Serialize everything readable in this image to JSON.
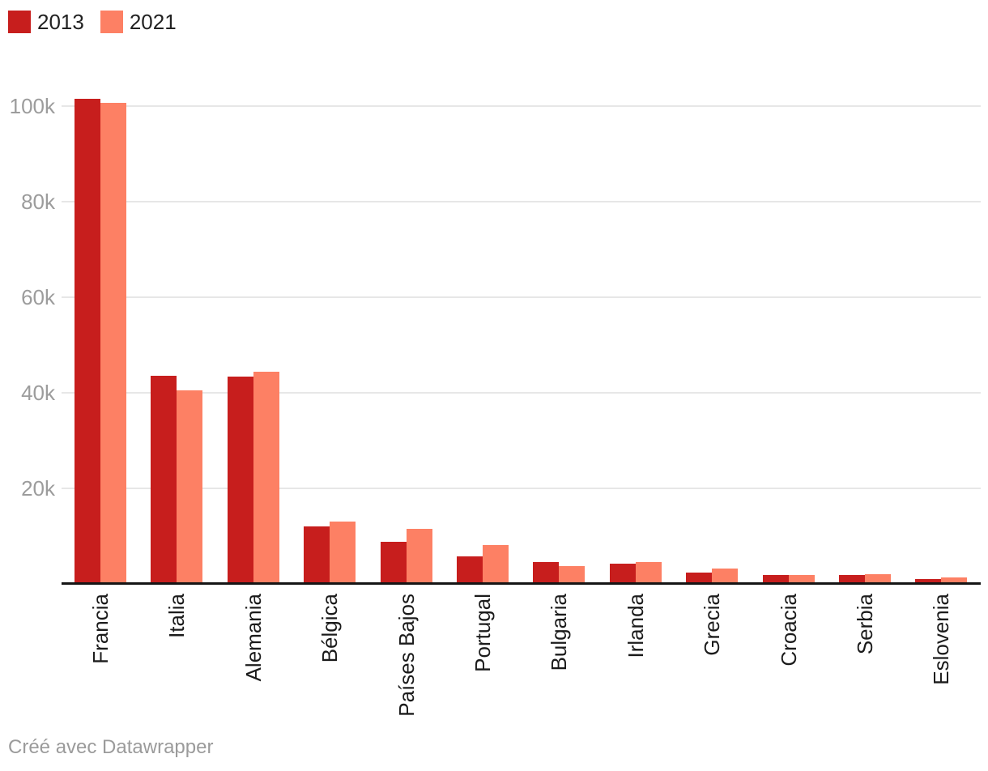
{
  "legend": {
    "items": [
      {
        "label": "2013",
        "color": "#c71e1d"
      },
      {
        "label": "2021",
        "color": "#fd8064"
      }
    ]
  },
  "footer": {
    "credit": "Créé avec Datawrapper"
  },
  "colors": {
    "series_2013": "#c71e1d",
    "series_2021": "#fd8064",
    "gridline": "#e7e7e7",
    "axis_line": "#151515",
    "tick_label": "#9c9c9c",
    "category_label": "#1b1b1b",
    "footer_text": "#9b9b9b"
  },
  "chart_data": {
    "type": "bar",
    "title": "",
    "xlabel": "",
    "ylabel": "",
    "categories": [
      "Francia",
      "Italia",
      "Alemania",
      "Bélgica",
      "Países Bajos",
      "Portugal",
      "Bulgaria",
      "Irlanda",
      "Grecia",
      "Croacia",
      "Serbia",
      "Eslovenia"
    ],
    "series": [
      {
        "name": "2013",
        "color": "#c71e1d",
        "values": [
          101500,
          43600,
          43300,
          12100,
          8800,
          5800,
          4600,
          4300,
          2300,
          1900,
          1800,
          1100
        ]
      },
      {
        "name": "2021",
        "color": "#fd8064",
        "values": [
          100600,
          40400,
          44400,
          13000,
          11500,
          8100,
          3700,
          4600,
          3300,
          1900,
          2100,
          1300
        ]
      }
    ],
    "ylim": [
      0,
      103000
    ],
    "yticks": [
      {
        "value": 20000,
        "label": "20k"
      },
      {
        "value": 40000,
        "label": "40k"
      },
      {
        "value": 60000,
        "label": "60k"
      },
      {
        "value": 80000,
        "label": "80k"
      },
      {
        "value": 100000,
        "label": "100k"
      }
    ],
    "grid": true,
    "legend_position": "top-left",
    "bar_orientation": "vertical",
    "x_tick_rotation": -90
  }
}
